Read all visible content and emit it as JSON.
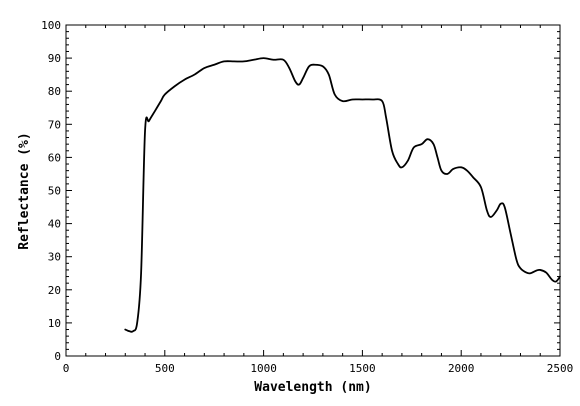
{
  "chart_data": {
    "type": "line",
    "title": "",
    "xlabel": "Wavelength (nm)",
    "ylabel": "Reflectance (%)",
    "xlim": [
      0,
      2500
    ],
    "ylim": [
      0,
      100
    ],
    "xticks": [
      0,
      500,
      1000,
      1500,
      2000,
      2500
    ],
    "yticks": [
      0,
      10,
      20,
      30,
      40,
      50,
      60,
      70,
      80,
      90,
      100
    ],
    "grid": false,
    "legend": "none",
    "line_color": "#000000",
    "series": [
      {
        "x": [
          300,
          320,
          340,
          360,
          380,
          400,
          420,
          450,
          480,
          500,
          550,
          600,
          650,
          700,
          750,
          800,
          850,
          900,
          950,
          1000,
          1050,
          1100,
          1130,
          1160,
          1180,
          1200,
          1230,
          1260,
          1300,
          1330,
          1360,
          1400,
          1450,
          1500,
          1550,
          1600,
          1620,
          1650,
          1680,
          1700,
          1730,
          1760,
          1800,
          1830,
          1860,
          1880,
          1900,
          1930,
          1960,
          2000,
          2030,
          2060,
          2100,
          2130,
          2150,
          2180,
          2200,
          2220,
          2250,
          2280,
          2300,
          2330,
          2350,
          2380,
          2400,
          2430,
          2460,
          2480,
          2500
        ],
        "y": [
          8,
          7.5,
          7.5,
          10,
          25,
          68,
          71,
          74,
          77,
          79,
          81.5,
          83.5,
          85,
          87,
          88,
          89,
          89,
          89,
          89.5,
          90,
          89.5,
          89.5,
          87,
          83,
          82,
          84,
          87.5,
          88,
          87.5,
          85,
          79,
          77,
          77.5,
          77.5,
          77.5,
          77,
          72,
          62,
          58,
          57,
          59,
          63,
          64,
          65.5,
          64,
          60,
          56,
          55,
          56.5,
          57,
          56,
          54,
          51,
          44,
          42,
          44,
          46,
          45,
          37,
          29,
          26.5,
          25.2,
          25,
          25.8,
          26,
          25.2,
          23,
          22.5,
          24
        ]
      }
    ]
  }
}
